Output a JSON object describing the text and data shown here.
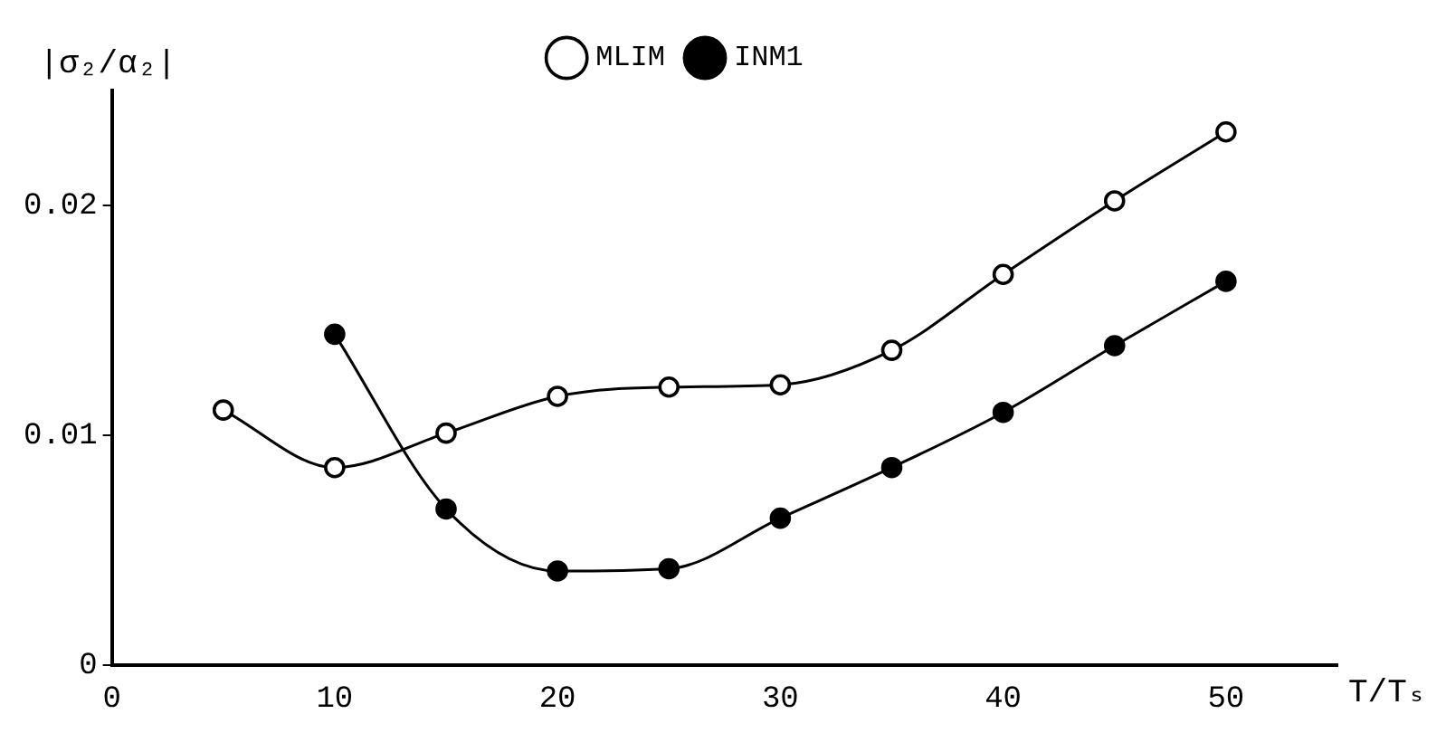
{
  "chart_data": {
    "type": "line",
    "xlabel": "T/Tₛ",
    "ylabel": "|σ₂/α₂|",
    "xlim": [
      0,
      55
    ],
    "xticks": [
      0,
      10,
      20,
      30,
      40,
      50
    ],
    "ylim": [
      0,
      0.025
    ],
    "yticks": [
      0,
      0.01,
      0.02
    ],
    "grid": false,
    "legend": "top",
    "marker": "circle",
    "series": [
      {
        "name": "MLIM",
        "color": "#000000",
        "x": [
          5,
          10,
          15,
          20,
          25,
          30,
          35,
          40,
          45,
          50
        ],
        "values": [
          0.0111,
          0.0086,
          0.0101,
          0.0117,
          0.0121,
          0.0122,
          0.0137,
          0.017,
          0.0202,
          0.0232
        ]
      },
      {
        "name": "INM1",
        "color": "#000000",
        "x": [
          10,
          15,
          20,
          25,
          30,
          35,
          40,
          45,
          50
        ],
        "values": [
          0.0144,
          0.0068,
          0.0041,
          0.0042,
          0.0064,
          0.0086,
          0.011,
          0.0139,
          0.0167
        ]
      }
    ]
  }
}
